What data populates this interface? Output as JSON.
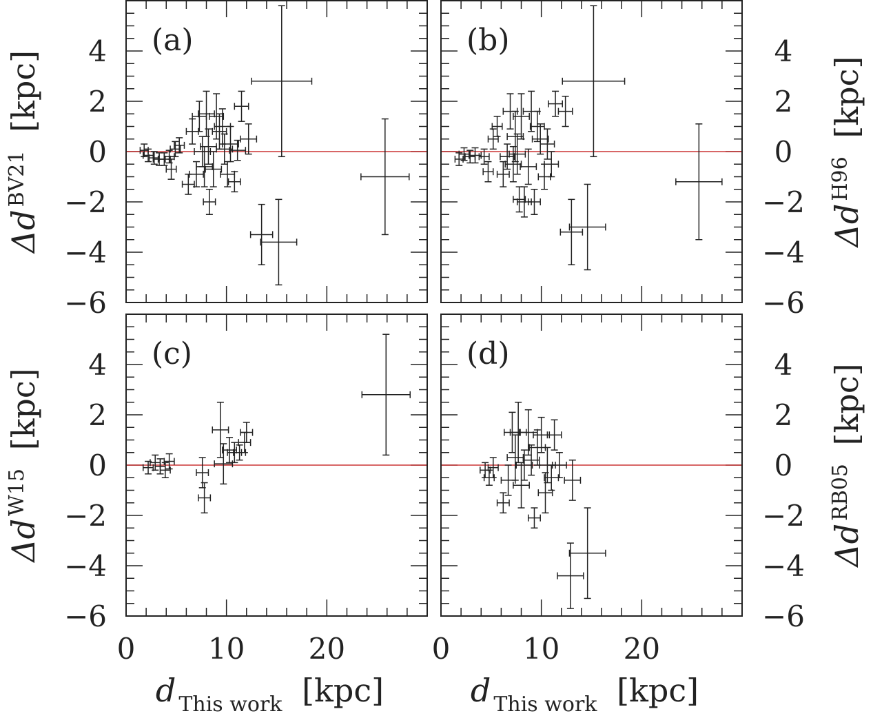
{
  "chart_data": {
    "type": "scatter",
    "shared": {
      "xlabel_main": "d",
      "xlabel_sub": "This work",
      "xlabel_unit": "[kpc]",
      "xlim": [
        0,
        30
      ],
      "ylim": [
        -6,
        6
      ],
      "xticks": [
        0,
        10,
        20
      ],
      "yticks": [
        -6,
        -4,
        -2,
        0,
        2,
        4
      ],
      "ylabel_prefix": "Δd",
      "ylabel_unit": "[kpc]",
      "zero_line_color": "#cc3333",
      "marker_color": "#222222"
    },
    "panels": [
      {
        "label": "(a)",
        "ylabel_sup": "BV21",
        "points": [
          {
            "x": 1.8,
            "y": 0.05,
            "xerr": 0.4,
            "yerr": 0.25
          },
          {
            "x": 2.2,
            "y": -0.15,
            "xerr": 0.5,
            "yerr": 0.25
          },
          {
            "x": 2.8,
            "y": -0.25,
            "xerr": 0.5,
            "yerr": 0.25
          },
          {
            "x": 3.3,
            "y": -0.3,
            "xerr": 0.6,
            "yerr": 0.25
          },
          {
            "x": 3.8,
            "y": -0.3,
            "xerr": 0.6,
            "yerr": 0.25
          },
          {
            "x": 4.3,
            "y": -0.2,
            "xerr": 0.5,
            "yerr": 0.25
          },
          {
            "x": 4.5,
            "y": -0.7,
            "xerr": 0.5,
            "yerr": 0.4
          },
          {
            "x": 4.9,
            "y": 0.1,
            "xerr": 0.5,
            "yerr": 0.3
          },
          {
            "x": 5.3,
            "y": 0.25,
            "xerr": 0.5,
            "yerr": 0.3
          },
          {
            "x": 6.2,
            "y": -1.3,
            "xerr": 0.6,
            "yerr": 0.4
          },
          {
            "x": 6.6,
            "y": 0.8,
            "xerr": 0.6,
            "yerr": 0.5
          },
          {
            "x": 7.0,
            "y": -0.9,
            "xerr": 0.7,
            "yerr": 0.5
          },
          {
            "x": 7.3,
            "y": 1.4,
            "xerr": 0.7,
            "yerr": 0.6
          },
          {
            "x": 7.6,
            "y": 0.0,
            "xerr": 0.8,
            "yerr": 0.6
          },
          {
            "x": 7.8,
            "y": -0.6,
            "xerr": 0.8,
            "yerr": 0.8
          },
          {
            "x": 8.0,
            "y": 1.5,
            "xerr": 0.8,
            "yerr": 0.9
          },
          {
            "x": 8.2,
            "y": 0.2,
            "xerr": 0.8,
            "yerr": 0.7
          },
          {
            "x": 8.3,
            "y": -2.0,
            "xerr": 0.6,
            "yerr": 0.5
          },
          {
            "x": 8.7,
            "y": -0.7,
            "xerr": 0.8,
            "yerr": 0.7
          },
          {
            "x": 9.0,
            "y": 1.4,
            "xerr": 0.7,
            "yerr": 0.9
          },
          {
            "x": 9.3,
            "y": 0.8,
            "xerr": 0.7,
            "yerr": 0.7
          },
          {
            "x": 9.6,
            "y": 1.0,
            "xerr": 0.8,
            "yerr": 0.7
          },
          {
            "x": 9.8,
            "y": 0.1,
            "xerr": 0.8,
            "yerr": 0.6
          },
          {
            "x": 10.1,
            "y": -0.9,
            "xerr": 0.7,
            "yerr": 0.5
          },
          {
            "x": 10.4,
            "y": 0.3,
            "xerr": 0.8,
            "yerr": 0.7
          },
          {
            "x": 10.8,
            "y": -1.2,
            "xerr": 0.6,
            "yerr": 0.4
          },
          {
            "x": 11.1,
            "y": 0.05,
            "xerr": 0.8,
            "yerr": 0.4
          },
          {
            "x": 11.5,
            "y": 1.8,
            "xerr": 0.7,
            "yerr": 0.6
          },
          {
            "x": 12.2,
            "y": 0.5,
            "xerr": 0.8,
            "yerr": 0.6
          },
          {
            "x": 13.5,
            "y": -3.3,
            "xerr": 1.1,
            "yerr": 1.2
          },
          {
            "x": 15.2,
            "y": -3.6,
            "xerr": 1.8,
            "yerr": 1.7
          },
          {
            "x": 15.5,
            "y": 2.8,
            "xerr": 3.0,
            "yerr": 3.0
          },
          {
            "x": 25.8,
            "y": -1.0,
            "xerr": 2.4,
            "yerr": 2.3
          }
        ]
      },
      {
        "label": "(b)",
        "ylabel_sup": "H96",
        "points": [
          {
            "x": 1.8,
            "y": -0.3,
            "xerr": 0.4,
            "yerr": 0.25
          },
          {
            "x": 2.3,
            "y": -0.1,
            "xerr": 0.5,
            "yerr": 0.25
          },
          {
            "x": 2.9,
            "y": -0.2,
            "xerr": 0.5,
            "yerr": 0.25
          },
          {
            "x": 3.4,
            "y": -0.15,
            "xerr": 0.6,
            "yerr": 0.3
          },
          {
            "x": 4.3,
            "y": -0.2,
            "xerr": 0.5,
            "yerr": 0.3
          },
          {
            "x": 4.7,
            "y": -0.8,
            "xerr": 0.5,
            "yerr": 0.4
          },
          {
            "x": 5.2,
            "y": 0.5,
            "xerr": 0.5,
            "yerr": 0.4
          },
          {
            "x": 5.6,
            "y": 1.0,
            "xerr": 0.5,
            "yerr": 0.4
          },
          {
            "x": 6.2,
            "y": -0.9,
            "xerr": 0.6,
            "yerr": 0.5
          },
          {
            "x": 6.6,
            "y": -0.2,
            "xerr": 0.7,
            "yerr": 0.5
          },
          {
            "x": 6.9,
            "y": 1.6,
            "xerr": 0.7,
            "yerr": 0.7
          },
          {
            "x": 7.2,
            "y": -0.5,
            "xerr": 0.8,
            "yerr": 0.7
          },
          {
            "x": 7.4,
            "y": 0.6,
            "xerr": 0.8,
            "yerr": 1.0
          },
          {
            "x": 7.6,
            "y": -0.1,
            "xerr": 0.8,
            "yerr": 0.8
          },
          {
            "x": 7.8,
            "y": -1.9,
            "xerr": 0.6,
            "yerr": 0.5
          },
          {
            "x": 8.0,
            "y": 1.4,
            "xerr": 0.8,
            "yerr": 0.9
          },
          {
            "x": 8.3,
            "y": -2.0,
            "xerr": 0.7,
            "yerr": 0.6
          },
          {
            "x": 8.7,
            "y": -0.6,
            "xerr": 0.8,
            "yerr": 0.7
          },
          {
            "x": 9.0,
            "y": 1.6,
            "xerr": 0.8,
            "yerr": 0.8
          },
          {
            "x": 9.3,
            "y": -2.0,
            "xerr": 0.6,
            "yerr": 0.5
          },
          {
            "x": 9.6,
            "y": 1.0,
            "xerr": 0.7,
            "yerr": 0.6
          },
          {
            "x": 9.9,
            "y": 0.5,
            "xerr": 0.8,
            "yerr": 0.6
          },
          {
            "x": 10.3,
            "y": -1.0,
            "xerr": 0.6,
            "yerr": 0.5
          },
          {
            "x": 10.6,
            "y": 0.3,
            "xerr": 0.7,
            "yerr": 0.6
          },
          {
            "x": 11.0,
            "y": -0.5,
            "xerr": 0.7,
            "yerr": 0.5
          },
          {
            "x": 11.4,
            "y": 1.9,
            "xerr": 0.7,
            "yerr": 0.5
          },
          {
            "x": 12.4,
            "y": 1.6,
            "xerr": 0.7,
            "yerr": 0.6
          },
          {
            "x": 13.0,
            "y": -3.2,
            "xerr": 1.1,
            "yerr": 1.3
          },
          {
            "x": 14.6,
            "y": -3.0,
            "xerr": 1.8,
            "yerr": 1.7
          },
          {
            "x": 15.2,
            "y": 2.8,
            "xerr": 3.1,
            "yerr": 3.0
          },
          {
            "x": 25.7,
            "y": -1.2,
            "xerr": 2.3,
            "yerr": 2.3
          }
        ]
      },
      {
        "label": "(c)",
        "ylabel_sup": "W15",
        "points": [
          {
            "x": 2.2,
            "y": -0.1,
            "xerr": 0.5,
            "yerr": 0.25
          },
          {
            "x": 2.9,
            "y": 0.1,
            "xerr": 0.5,
            "yerr": 0.3
          },
          {
            "x": 3.4,
            "y": -0.05,
            "xerr": 0.5,
            "yerr": 0.3
          },
          {
            "x": 3.9,
            "y": -0.2,
            "xerr": 0.5,
            "yerr": 0.3
          },
          {
            "x": 4.3,
            "y": 0.15,
            "xerr": 0.5,
            "yerr": 0.3
          },
          {
            "x": 7.6,
            "y": -0.3,
            "xerr": 0.6,
            "yerr": 0.6
          },
          {
            "x": 7.8,
            "y": -1.3,
            "xerr": 0.6,
            "yerr": 0.6
          },
          {
            "x": 9.4,
            "y": 1.4,
            "xerr": 0.8,
            "yerr": 1.1
          },
          {
            "x": 9.7,
            "y": 0.05,
            "xerr": 0.9,
            "yerr": 0.8
          },
          {
            "x": 10.3,
            "y": 0.6,
            "xerr": 0.7,
            "yerr": 0.5
          },
          {
            "x": 10.8,
            "y": 0.5,
            "xerr": 0.7,
            "yerr": 0.4
          },
          {
            "x": 11.3,
            "y": 0.5,
            "xerr": 0.6,
            "yerr": 0.3
          },
          {
            "x": 11.8,
            "y": 0.9,
            "xerr": 0.6,
            "yerr": 0.4
          },
          {
            "x": 12.0,
            "y": 1.3,
            "xerr": 0.6,
            "yerr": 0.4
          },
          {
            "x": 25.9,
            "y": 2.8,
            "xerr": 2.4,
            "yerr": 2.4
          }
        ]
      },
      {
        "label": "(d)",
        "ylabel_sup": "RB05",
        "points": [
          {
            "x": 4.4,
            "y": -0.2,
            "xerr": 0.5,
            "yerr": 0.3
          },
          {
            "x": 4.8,
            "y": -0.5,
            "xerr": 0.5,
            "yerr": 0.3
          },
          {
            "x": 5.2,
            "y": -0.1,
            "xerr": 0.5,
            "yerr": 0.4
          },
          {
            "x": 6.2,
            "y": -1.5,
            "xerr": 0.6,
            "yerr": 0.4
          },
          {
            "x": 6.7,
            "y": -0.6,
            "xerr": 0.7,
            "yerr": 0.6
          },
          {
            "x": 7.1,
            "y": 1.3,
            "xerr": 0.8,
            "yerr": 0.8
          },
          {
            "x": 7.4,
            "y": 0.3,
            "xerr": 0.8,
            "yerr": 0.9
          },
          {
            "x": 7.7,
            "y": 1.3,
            "xerr": 0.8,
            "yerr": 1.2
          },
          {
            "x": 8.0,
            "y": -0.8,
            "xerr": 0.8,
            "yerr": 0.9
          },
          {
            "x": 8.3,
            "y": 0.0,
            "xerr": 0.8,
            "yerr": 0.6
          },
          {
            "x": 8.7,
            "y": 1.3,
            "xerr": 0.9,
            "yerr": 0.9
          },
          {
            "x": 9.0,
            "y": 0.2,
            "xerr": 0.8,
            "yerr": 0.6
          },
          {
            "x": 9.3,
            "y": -2.1,
            "xerr": 0.6,
            "yerr": 0.4
          },
          {
            "x": 9.6,
            "y": 0.7,
            "xerr": 0.8,
            "yerr": 0.7
          },
          {
            "x": 10.0,
            "y": 1.2,
            "xerr": 0.8,
            "yerr": 0.7
          },
          {
            "x": 10.4,
            "y": -1.1,
            "xerr": 0.7,
            "yerr": 0.8
          },
          {
            "x": 10.6,
            "y": 0.0,
            "xerr": 0.8,
            "yerr": 0.7
          },
          {
            "x": 11.0,
            "y": -0.5,
            "xerr": 0.7,
            "yerr": 0.5
          },
          {
            "x": 11.3,
            "y": 1.2,
            "xerr": 0.7,
            "yerr": 0.6
          },
          {
            "x": 11.8,
            "y": 0.0,
            "xerr": 0.7,
            "yerr": 0.5
          },
          {
            "x": 12.9,
            "y": -4.4,
            "xerr": 1.3,
            "yerr": 1.3
          },
          {
            "x": 13.1,
            "y": -0.6,
            "xerr": 0.8,
            "yerr": 0.8
          },
          {
            "x": 14.6,
            "y": -3.5,
            "xerr": 1.8,
            "yerr": 1.8
          }
        ]
      }
    ]
  }
}
